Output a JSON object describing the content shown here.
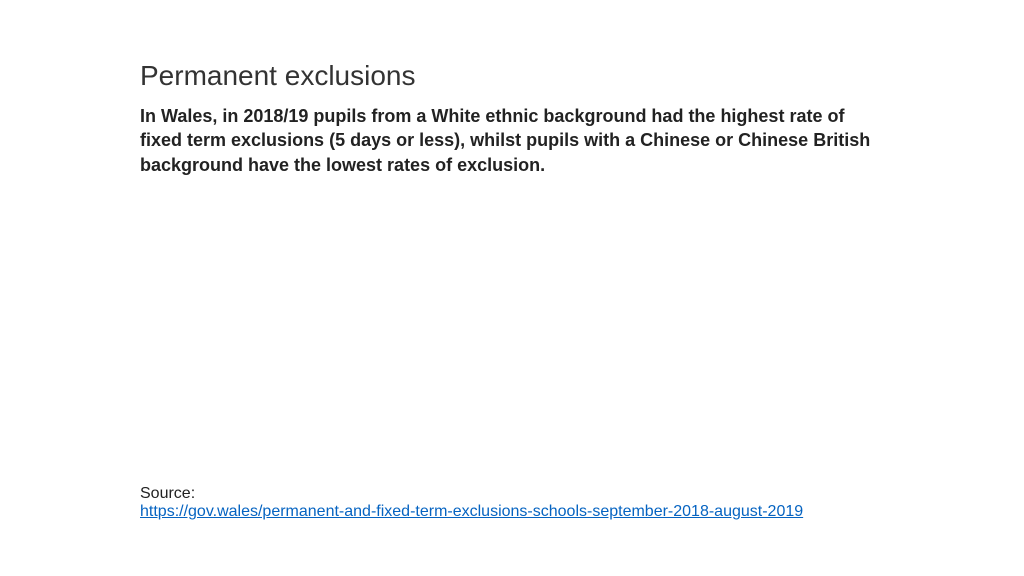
{
  "slide": {
    "title": "Permanent exclusions",
    "body": "In Wales, in 2018/19 pupils from a White ethnic background had the highest rate of fixed term exclusions (5 days or less), whilst pupils with a Chinese or Chinese British background have the lowest rates of exclusion.",
    "source_label": "Source:",
    "source_url": "https://gov.wales/permanent-and-fixed-term-exclusions-schools-september-2018-august-2019"
  },
  "colors": {
    "background": "#ffffff",
    "title_color": "#333333",
    "body_color": "#222222",
    "link_color": "#0563c1"
  },
  "typography": {
    "title_fontsize": 28,
    "title_weight": 400,
    "body_fontsize": 18,
    "body_weight": 700,
    "source_fontsize": 16,
    "font_family": "Arial"
  }
}
